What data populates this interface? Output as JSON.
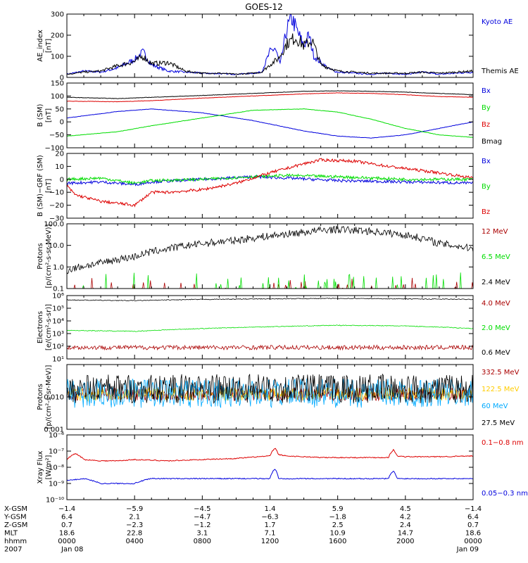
{
  "title": "GOES-12",
  "colors": {
    "black": "#000000",
    "blue": "#0000dd",
    "red": "#dd0000",
    "green": "#00dd00",
    "darkred": "#aa0000",
    "yellow": "#ffcc00",
    "cyan": "#00aaff"
  },
  "chart_data": [
    {
      "type": "line",
      "ylabel": [
        "AE_index",
        "[nT]"
      ],
      "ylim": [
        0,
        300
      ],
      "yticks": [
        {
          "v": 0,
          "label": "0"
        },
        {
          "v": 100,
          "label": "100"
        },
        {
          "v": 200,
          "label": "200"
        },
        {
          "v": 300,
          "label": "300"
        }
      ],
      "series": [
        {
          "name": "Kyoto AE",
          "color": "#0000dd",
          "x": [
            0,
            1,
            2,
            3,
            4,
            4.5,
            5,
            5.5,
            6,
            7,
            8,
            9,
            10,
            11,
            11.5,
            12,
            12.3,
            12.6,
            13,
            13.3,
            13.6,
            14,
            14.3,
            14.6,
            15,
            15.5,
            16,
            17,
            18,
            19,
            20,
            21,
            22,
            23,
            24
          ],
          "y": [
            15,
            30,
            25,
            45,
            85,
            120,
            60,
            45,
            30,
            25,
            20,
            18,
            15,
            20,
            25,
            120,
            140,
            60,
            230,
            280,
            220,
            150,
            200,
            100,
            70,
            40,
            25,
            20,
            15,
            20,
            15,
            25,
            15,
            20,
            25
          ]
        },
        {
          "name": "Themis AE",
          "color": "#000000",
          "x": [
            0,
            1,
            2,
            3,
            4,
            4.5,
            5,
            6,
            7,
            8,
            9,
            10,
            11,
            11.5,
            12,
            12.5,
            13,
            13.5,
            14,
            14.5,
            15,
            16,
            17,
            18,
            19,
            20,
            21,
            22,
            23,
            24
          ],
          "y": [
            15,
            25,
            30,
            55,
            75,
            100,
            65,
            70,
            30,
            20,
            20,
            15,
            20,
            25,
            60,
            90,
            160,
            190,
            150,
            175,
            60,
            30,
            25,
            20,
            20,
            20,
            25,
            20,
            25,
            30
          ]
        }
      ]
    },
    {
      "type": "line",
      "ylabel": [
        "B (SM)",
        "[nT]"
      ],
      "ylim": [
        -100,
        150
      ],
      "yticks": [
        {
          "v": -100,
          "label": "−100"
        },
        {
          "v": -50,
          "label": "−50"
        },
        {
          "v": 0,
          "label": "0"
        },
        {
          "v": 50,
          "label": "50"
        },
        {
          "v": 100,
          "label": "100"
        },
        {
          "v": 150,
          "label": "150"
        }
      ],
      "series": [
        {
          "name": "Bx",
          "color": "#0000dd",
          "x": [
            0,
            3,
            5,
            8,
            11,
            14,
            16,
            18,
            20,
            22,
            24
          ],
          "y": [
            15,
            40,
            50,
            35,
            5,
            -35,
            -55,
            -62,
            -50,
            -25,
            0
          ]
        },
        {
          "name": "By",
          "color": "#00dd00",
          "x": [
            0,
            3,
            5,
            8,
            11,
            14,
            16,
            18,
            20,
            22,
            24
          ],
          "y": [
            -55,
            -38,
            -15,
            15,
            45,
            50,
            38,
            10,
            -25,
            -50,
            -60
          ]
        },
        {
          "name": "Bz",
          "color": "#dd0000",
          "x": [
            0,
            3,
            5,
            8,
            11,
            14,
            16,
            18,
            20,
            22,
            24
          ],
          "y": [
            80,
            78,
            82,
            92,
            100,
            108,
            112,
            110,
            105,
            98,
            95
          ]
        },
        {
          "name": "Bmag",
          "color": "#000000",
          "x": [
            0,
            3,
            5,
            8,
            11,
            14,
            16,
            18,
            20,
            22,
            24
          ],
          "y": [
            95,
            90,
            95,
            102,
            110,
            118,
            120,
            118,
            115,
            110,
            105
          ]
        }
      ]
    },
    {
      "type": "line",
      "ylabel": [
        "B (SM)−GRF (SM)",
        "[nT]"
      ],
      "ylim": [
        -30,
        20
      ],
      "yticks": [
        {
          "v": -30,
          "label": "−30"
        },
        {
          "v": -20,
          "label": "−20"
        },
        {
          "v": -10,
          "label": "−10"
        },
        {
          "v": 0,
          "label": "0"
        },
        {
          "v": 10,
          "label": "10"
        },
        {
          "v": 20,
          "label": "20"
        }
      ],
      "series": [
        {
          "name": "Bx",
          "color": "#0000dd",
          "x": [
            0,
            2,
            4,
            5,
            8,
            11,
            13,
            16,
            20,
            24
          ],
          "y": [
            -3,
            -2,
            -4,
            -2,
            0,
            2,
            1,
            -1,
            -2,
            -3
          ]
        },
        {
          "name": "By",
          "color": "#00dd00",
          "x": [
            0,
            2,
            4,
            5,
            8,
            11,
            13,
            16,
            20,
            24
          ],
          "y": [
            0,
            1,
            -3,
            -1,
            0,
            2,
            3,
            2,
            0,
            0
          ]
        },
        {
          "name": "Bz",
          "color": "#dd0000",
          "x": [
            0,
            0.5,
            2,
            4,
            5,
            6,
            8,
            10,
            12,
            14,
            15,
            17,
            19,
            22,
            24
          ],
          "y": [
            -5,
            -12,
            -17,
            -20,
            -10,
            -10,
            -8,
            -3,
            5,
            12,
            15,
            14,
            10,
            5,
            1
          ]
        }
      ]
    },
    {
      "type": "line",
      "ylabel": [
        "Protons",
        "[p/(cm²-s-sr-MeV)]"
      ],
      "yscale": "log",
      "ylim": [
        0.1,
        100
      ],
      "yticks": [
        {
          "v": 0.1,
          "label": "0.1"
        },
        {
          "v": 1,
          "label": "1.0"
        },
        {
          "v": 10,
          "label": "10.0"
        },
        {
          "v": 100,
          "label": "100.0"
        }
      ],
      "series": [
        {
          "name": "12 MeV",
          "color": "#aa0000",
          "x": [
            0,
            24
          ],
          "y": [
            0.12,
            0.12
          ]
        },
        {
          "name": "6.5 MeV",
          "color": "#00dd00",
          "x": [
            0,
            24
          ],
          "y": [
            0.15,
            0.15
          ]
        },
        {
          "name": "2.4 MeV",
          "color": "#000000",
          "x": [
            0,
            2,
            4,
            6,
            8,
            10,
            12,
            14,
            15,
            16,
            18,
            20,
            22,
            24
          ],
          "y": [
            0.7,
            1.5,
            3,
            7,
            12,
            17,
            27,
            40,
            50,
            55,
            45,
            30,
            12,
            7
          ]
        }
      ]
    },
    {
      "type": "line",
      "ylabel": [
        "Electrons",
        "[e/(cm²-s-sr)]"
      ],
      "yscale": "log",
      "ylim": [
        10,
        1000000
      ],
      "yticks": [
        {
          "v": 10,
          "label": "10¹"
        },
        {
          "v": 100,
          "label": "10²"
        },
        {
          "v": 1000,
          "label": "10³"
        },
        {
          "v": 10000,
          "label": "10⁴"
        },
        {
          "v": 100000,
          "label": "10⁵"
        },
        {
          "v": 1000000,
          "label": "10⁶"
        }
      ],
      "series": [
        {
          "name": "4.0 MeV",
          "color": "#aa0000",
          "x": [
            0,
            24
          ],
          "y": [
            80,
            80
          ]
        },
        {
          "name": "2.0 MeV",
          "color": "#00dd00",
          "x": [
            0,
            4,
            8,
            12,
            16,
            20,
            24
          ],
          "y": [
            1800,
            1500,
            2500,
            3500,
            4500,
            4000,
            2500
          ]
        },
        {
          "name": "0.6 MeV",
          "color": "#000000",
          "x": [
            0,
            4,
            8,
            12,
            16,
            20,
            24
          ],
          "y": [
            450000,
            400000,
            500000,
            550000,
            600000,
            550000,
            500000
          ]
        }
      ]
    },
    {
      "type": "line",
      "ylabel": [
        "Protons",
        "[p/(cm²-s-sr-MeV)]"
      ],
      "yscale": "log",
      "ylim": [
        0.001,
        0.1
      ],
      "yticks": [
        {
          "v": 0.001,
          "label": "0.001"
        },
        {
          "v": 0.01,
          "label": "0.010"
        }
      ],
      "series": [
        {
          "name": "332.5 MeV",
          "color": "#aa0000",
          "x": [
            0,
            24
          ],
          "y": [
            0.012,
            0.012
          ]
        },
        {
          "name": "122.5 MeV",
          "color": "#ffcc00",
          "x": [
            0,
            24
          ],
          "y": [
            0.012,
            0.012
          ]
        },
        {
          "name": "60 MeV",
          "color": "#00aaff",
          "x": [
            0,
            24
          ],
          "y": [
            0.013,
            0.013
          ]
        },
        {
          "name": "27.5 MeV",
          "color": "#000000",
          "x": [
            0,
            24
          ],
          "y": [
            0.018,
            0.018
          ]
        }
      ]
    },
    {
      "type": "line",
      "ylabel": [
        "Xray Flux",
        "[W/m²]"
      ],
      "yscale": "log",
      "ylim": [
        1e-10,
        1e-06
      ],
      "yticks": [
        {
          "v": 1e-10,
          "label": "10⁻¹⁰"
        },
        {
          "v": 1e-09,
          "label": "10⁻⁹"
        },
        {
          "v": 1e-08,
          "label": "10⁻⁸"
        },
        {
          "v": 1e-07,
          "label": "10⁻⁷"
        },
        {
          "v": 1e-06,
          "label": "10⁻⁶"
        }
      ],
      "series": [
        {
          "name": "0.1−0.8 nm",
          "color": "#dd0000",
          "x": [
            0,
            0.5,
            1,
            2,
            3,
            4,
            6,
            8,
            10,
            12,
            12.3,
            12.5,
            13,
            15,
            17,
            19,
            19.3,
            19.5,
            20,
            22,
            24
          ],
          "y": [
            3e-08,
            7e-08,
            3e-08,
            2.5e-08,
            2.5e-08,
            3e-08,
            2.5e-08,
            3e-08,
            3.5e-08,
            5e-08,
            1.5e-07,
            6e-08,
            5e-08,
            4e-08,
            4e-08,
            4e-08,
            1.2e-07,
            5e-08,
            4.5e-08,
            4.5e-08,
            5e-08
          ]
        },
        {
          "name": "0.05−0.3 nm",
          "color": "#0000dd",
          "x": [
            0,
            1,
            2,
            4,
            5,
            6,
            8,
            10,
            12,
            12.3,
            12.5,
            13,
            15,
            17,
            19,
            19.3,
            19.5,
            20,
            22,
            24
          ],
          "y": [
            1.5e-09,
            2e-09,
            1e-09,
            1e-09,
            2e-09,
            2e-09,
            2e-09,
            2e-09,
            2e-09,
            8e-09,
            2e-09,
            2e-09,
            2e-09,
            2e-09,
            2e-09,
            6e-09,
            2e-09,
            2e-09,
            2e-09,
            2e-09
          ]
        }
      ]
    }
  ],
  "xaxis": {
    "rows": [
      {
        "label": "X-GSM",
        "values": [
          "−1.4",
          "−5.9",
          "−4.5",
          "1.4",
          "5.9",
          "4.5",
          "−1.4"
        ]
      },
      {
        "label": "Y-GSM",
        "values": [
          "6.4",
          "2.1",
          "−4.7",
          "−6.3",
          "−1.8",
          "4.2",
          "6.4"
        ]
      },
      {
        "label": "Z-GSM",
        "values": [
          "0.7",
          "−2.3",
          "−1.2",
          "1.7",
          "2.5",
          "2.4",
          "0.7"
        ]
      },
      {
        "label": "MLT",
        "values": [
          "18.6",
          "22.8",
          "3.1",
          "7.1",
          "10.9",
          "14.7",
          "18.6"
        ]
      },
      {
        "label": "hhmm",
        "values": [
          "0000",
          "0400",
          "0800",
          "1200",
          "1600",
          "2000",
          "0000"
        ]
      },
      {
        "label": "2007",
        "values": [
          "Jan 08",
          "",
          "",
          "",
          "",
          "",
          "Jan 09"
        ]
      }
    ]
  }
}
